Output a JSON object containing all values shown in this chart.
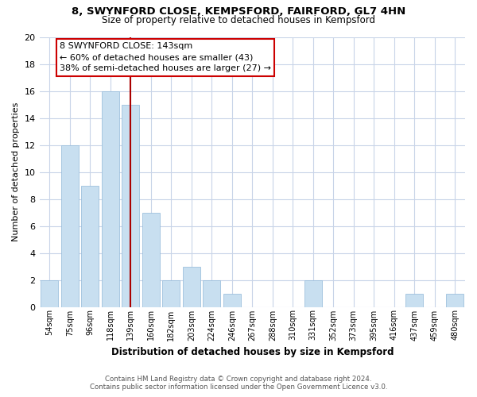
{
  "title": "8, SWYNFORD CLOSE, KEMPSFORD, FAIRFORD, GL7 4HN",
  "subtitle": "Size of property relative to detached houses in Kempsford",
  "xlabel": "Distribution of detached houses by size in Kempsford",
  "ylabel": "Number of detached properties",
  "bar_labels": [
    "54sqm",
    "75sqm",
    "96sqm",
    "118sqm",
    "139sqm",
    "160sqm",
    "182sqm",
    "203sqm",
    "224sqm",
    "246sqm",
    "267sqm",
    "288sqm",
    "310sqm",
    "331sqm",
    "352sqm",
    "373sqm",
    "395sqm",
    "416sqm",
    "437sqm",
    "459sqm",
    "480sqm"
  ],
  "bar_values": [
    2,
    12,
    9,
    16,
    15,
    7,
    2,
    3,
    2,
    1,
    0,
    0,
    0,
    2,
    0,
    0,
    0,
    0,
    1,
    0,
    1
  ],
  "highlight_index": 4,
  "bar_color": "#c8dff0",
  "vline_color": "#aa0000",
  "ylim": [
    0,
    20
  ],
  "yticks": [
    0,
    2,
    4,
    6,
    8,
    10,
    12,
    14,
    16,
    18,
    20
  ],
  "annotation_title": "8 SWYNFORD CLOSE: 143sqm",
  "annotation_line1": "← 60% of detached houses are smaller (43)",
  "annotation_line2": "38% of semi-detached houses are larger (27) →",
  "annotation_box_color": "#ffffff",
  "annotation_box_edge": "#cc0000",
  "footer_line1": "Contains HM Land Registry data © Crown copyright and database right 2024.",
  "footer_line2": "Contains public sector information licensed under the Open Government Licence v3.0.",
  "bg_color": "#ffffff",
  "grid_color": "#c8d4e8"
}
